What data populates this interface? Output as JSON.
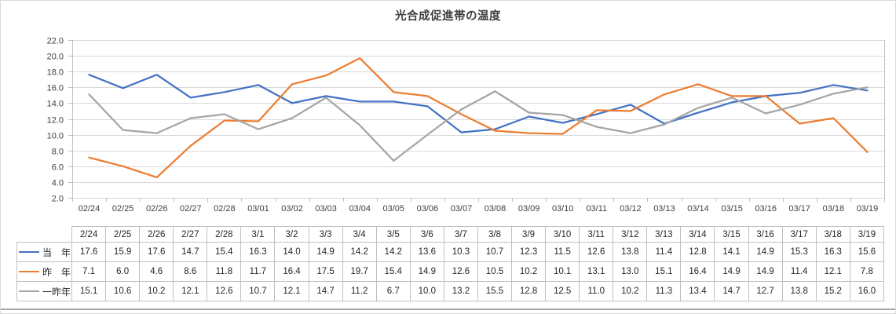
{
  "chart_data": {
    "type": "line",
    "title": "光合成促進帯の温度",
    "xlabel": "",
    "ylabel": "",
    "ylim": [
      2.0,
      22.0
    ],
    "y_tick_step": 2.0,
    "y_tick_labels": [
      "22.0",
      "20.0",
      "18.0",
      "16.0",
      "14.0",
      "12.0",
      "10.0",
      "8.0",
      "6.0",
      "4.0",
      "2.0"
    ],
    "grid": true,
    "legend_position": "table-left",
    "x": [
      "02/24",
      "02/25",
      "02/26",
      "02/27",
      "02/28",
      "03/01",
      "03/02",
      "03/03",
      "03/04",
      "03/05",
      "03/06",
      "03/07",
      "03/08",
      "03/09",
      "03/10",
      "03/11",
      "03/12",
      "03/13",
      "03/14",
      "03/15",
      "03/16",
      "03/17",
      "03/18",
      "03/19"
    ],
    "series": [
      {
        "key": "this-year",
        "name": "当　年",
        "color": "#4472C4",
        "icon": "this-year-line-icon",
        "values": [
          "17.6",
          "15.9",
          "17.6",
          "14.7",
          "15.4",
          "16.3",
          "14.0",
          "14.9",
          "14.2",
          "14.2",
          "13.6",
          "10.3",
          "10.7",
          "12.3",
          "11.5",
          "12.6",
          "13.8",
          "11.4",
          "12.8",
          "14.1",
          "14.9",
          "15.3",
          "16.3",
          "15.6"
        ]
      },
      {
        "key": "last-year",
        "name": "昨　年",
        "color": "#ED7D31",
        "icon": "last-year-line-icon",
        "values": [
          "7.1",
          "6.0",
          "4.6",
          "8.6",
          "11.8",
          "11.7",
          "16.4",
          "17.5",
          "19.7",
          "15.4",
          "14.9",
          "12.6",
          "10.5",
          "10.2",
          "10.1",
          "13.1",
          "13.0",
          "15.1",
          "16.4",
          "14.9",
          "14.9",
          "11.4",
          "12.1",
          "7.8"
        ]
      },
      {
        "key": "year-before-last",
        "name": "一昨年",
        "color": "#A5A5A5",
        "icon": "year-before-last-line-icon",
        "values": [
          "15.1",
          "10.6",
          "10.2",
          "12.1",
          "12.6",
          "10.7",
          "12.1",
          "14.7",
          "11.2",
          "6.7",
          "10.0",
          "13.2",
          "15.5",
          "12.8",
          "12.5",
          "11.0",
          "10.2",
          "11.3",
          "13.4",
          "14.7",
          "12.7",
          "13.8",
          "15.2",
          "16.0"
        ]
      }
    ]
  },
  "table": {
    "corner": "",
    "date_row": [
      "2/24",
      "2/25",
      "2/26",
      "2/27",
      "2/28",
      "3/1",
      "3/2",
      "3/3",
      "3/4",
      "3/5",
      "3/6",
      "3/7",
      "3/8",
      "3/9",
      "3/10",
      "3/11",
      "3/12",
      "3/13",
      "3/14",
      "3/15",
      "3/16",
      "3/17",
      "3/18",
      "3/19"
    ]
  },
  "colors": {
    "grid": "#D9D9D9",
    "axis_line": "#C0C0C0",
    "tick": "#C0C0C0",
    "axis_text": "#404040",
    "title_text": "#404040",
    "table_border": "#BFBFBF",
    "table_text": "#262626",
    "bottom_bar": "#A6A6A6"
  }
}
